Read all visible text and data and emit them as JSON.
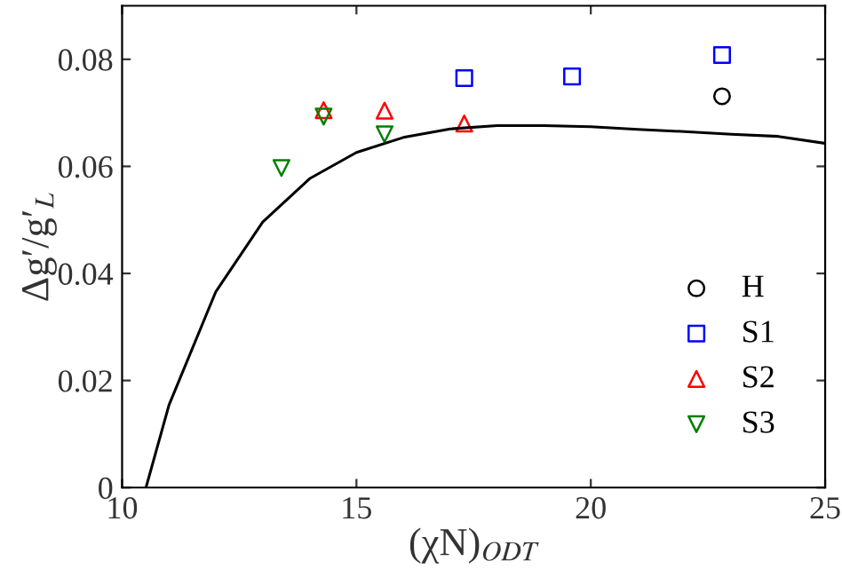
{
  "chart_data": {
    "type": "scatter",
    "xlabel": "(χN)$_{ODT}$",
    "ylabel": "Δg′/g′$_{L}$",
    "xlim": [
      10,
      25
    ],
    "ylim": [
      0,
      0.09
    ],
    "xticks": [
      10,
      15,
      20,
      25
    ],
    "yticks": [
      0,
      0.02,
      0.04,
      0.06,
      0.08
    ],
    "grid": false,
    "legend": "bottom right",
    "series": [
      {
        "type": "line",
        "color": "#000000",
        "marker": "none",
        "line_style": "solid",
        "x": [
          10.51,
          11.0,
          12.0,
          13.0,
          14.0,
          15.0,
          16.0,
          17.0,
          18.0,
          19.0,
          20.0,
          21.0,
          22.0,
          23.0,
          24.0,
          25.0
        ],
        "values": [
          0,
          0.0154,
          0.0366,
          0.0496,
          0.0577,
          0.0626,
          0.0654,
          0.067,
          0.0676,
          0.0676,
          0.0674,
          0.0669,
          0.0665,
          0.066,
          0.0656,
          0.0643
        ]
      },
      {
        "name": "H",
        "color": "#000000",
        "marker": "circle",
        "x": [
          22.8
        ],
        "values": [
          0.0731
        ]
      },
      {
        "name": "S1",
        "color": "#0000ff",
        "marker": "square",
        "x": [
          17.3,
          19.6,
          22.8
        ],
        "values": [
          0.0765,
          0.0768,
          0.0808
        ]
      },
      {
        "name": "S2",
        "color": "#ff0000",
        "marker": "triangle",
        "x": [
          14.3,
          15.6,
          17.3
        ],
        "values": [
          0.0705,
          0.0704,
          0.068
        ]
      },
      {
        "name": "S3",
        "color": "#008000",
        "marker": "triangle_down",
        "x": [
          13.4,
          14.3,
          15.6
        ],
        "values": [
          0.0597,
          0.0693,
          0.066
        ]
      }
    ]
  }
}
